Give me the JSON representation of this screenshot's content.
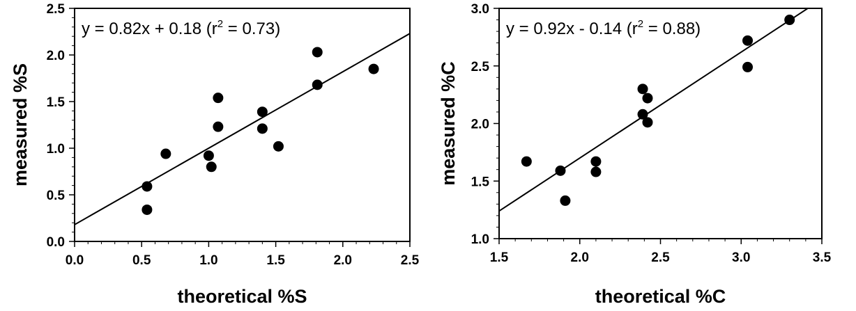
{
  "chart_data": [
    {
      "type": "scatter",
      "title": "",
      "xlabel": "theoretical %S",
      "ylabel": "measured %S",
      "xlim": [
        0.0,
        2.5
      ],
      "ylim": [
        0.0,
        2.5
      ],
      "xticks": [
        "0.0",
        "0.5",
        "1.0",
        "1.5",
        "2.0",
        "2.5"
      ],
      "yticks": [
        "0.0",
        "0.5",
        "1.0",
        "1.5",
        "2.0",
        "2.5"
      ],
      "grid": false,
      "legend": "none",
      "equation": {
        "prefix": "y = 0.82x + 0.18 (r",
        "sup": "2",
        "suffix": " = 0.73)"
      },
      "fit": {
        "slope": 0.82,
        "intercept": 0.18
      },
      "points": [
        {
          "x": 0.54,
          "y": 0.59
        },
        {
          "x": 0.54,
          "y": 0.34
        },
        {
          "x": 0.68,
          "y": 0.94
        },
        {
          "x": 1.0,
          "y": 0.92
        },
        {
          "x": 1.02,
          "y": 0.8
        },
        {
          "x": 1.07,
          "y": 1.54
        },
        {
          "x": 1.07,
          "y": 1.23
        },
        {
          "x": 1.4,
          "y": 1.39
        },
        {
          "x": 1.4,
          "y": 1.21
        },
        {
          "x": 1.52,
          "y": 1.02
        },
        {
          "x": 1.81,
          "y": 2.03
        },
        {
          "x": 1.81,
          "y": 1.68
        },
        {
          "x": 2.23,
          "y": 1.85
        }
      ]
    },
    {
      "type": "scatter",
      "title": "",
      "xlabel": "theoretical %C",
      "ylabel": "measured %C",
      "xlim": [
        1.5,
        3.5
      ],
      "ylim": [
        1.0,
        3.0
      ],
      "xticks": [
        "1.5",
        "2.0",
        "2.5",
        "3.0",
        "3.5"
      ],
      "yticks": [
        "1.0",
        "1.5",
        "2.0",
        "2.5",
        "3.0"
      ],
      "grid": false,
      "legend": "none",
      "equation": {
        "prefix": "y = 0.92x - 0.14 (r",
        "sup": "2",
        "suffix": " = 0.88)"
      },
      "fit": {
        "slope": 0.92,
        "intercept": -0.14
      },
      "points": [
        {
          "x": 1.67,
          "y": 1.67
        },
        {
          "x": 1.88,
          "y": 1.59
        },
        {
          "x": 1.91,
          "y": 1.33
        },
        {
          "x": 2.1,
          "y": 1.67
        },
        {
          "x": 2.1,
          "y": 1.58
        },
        {
          "x": 2.39,
          "y": 2.3
        },
        {
          "x": 2.39,
          "y": 2.08
        },
        {
          "x": 2.42,
          "y": 2.22
        },
        {
          "x": 2.42,
          "y": 2.01
        },
        {
          "x": 3.04,
          "y": 2.72
        },
        {
          "x": 3.04,
          "y": 2.49
        },
        {
          "x": 3.3,
          "y": 2.9
        }
      ]
    }
  ]
}
